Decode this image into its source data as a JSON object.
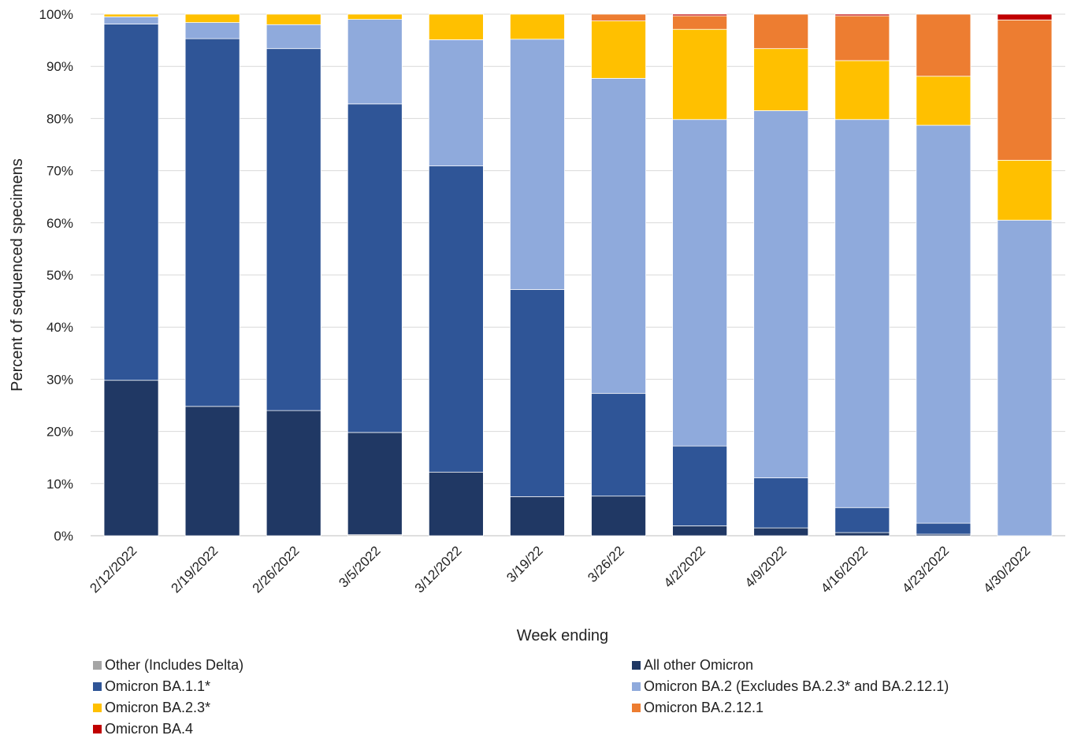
{
  "chart_data": {
    "type": "bar",
    "stacked": true,
    "xlabel": "Week ending",
    "ylabel": "Percent of sequenced specimens",
    "ylim": [
      0,
      100
    ],
    "yticks": [
      "0%",
      "10%",
      "20%",
      "30%",
      "40%",
      "50%",
      "60%",
      "70%",
      "80%",
      "90%",
      "100%"
    ],
    "grid": true,
    "legend_position": "bottom",
    "categories": [
      "2/12/2022",
      "2/19/2022",
      "2/26/2022",
      "3/5/2022",
      "3/12/2022",
      "3/19/22",
      "3/26/22",
      "4/2/2022",
      "4/9/2022",
      "4/16/2022",
      "4/23/2022",
      "4/30/2022"
    ],
    "series": [
      {
        "name": "Other (Includes Delta)",
        "color": "#a5a5a5",
        "values": [
          0,
          0,
          0,
          0.2,
          0,
          0,
          0,
          0,
          0,
          0,
          0,
          0
        ]
      },
      {
        "name": "All other Omicron",
        "color": "#203864",
        "values": [
          29.8,
          24.8,
          24.0,
          19.6,
          12.2,
          7.5,
          7.6,
          1.9,
          1.5,
          0.6,
          0.3,
          0
        ]
      },
      {
        "name": "Omicron BA.1.1*",
        "color": "#2f5597",
        "values": [
          68.3,
          70.5,
          69.4,
          63.0,
          58.7,
          39.7,
          19.7,
          15.3,
          9.6,
          4.8,
          2.1,
          0
        ]
      },
      {
        "name": "Omicron BA.2 (Excludes BA.2.3* and BA.2.12.1)",
        "color": "#8faadc",
        "values": [
          1.4,
          3.1,
          4.6,
          16.2,
          24.2,
          48.0,
          60.4,
          62.6,
          70.4,
          74.4,
          76.3,
          60.5
        ]
      },
      {
        "name": "Omicron BA.2.3*",
        "color": "#ffc000",
        "values": [
          0.5,
          1.6,
          2.0,
          1.0,
          4.9,
          4.8,
          11.0,
          17.3,
          11.9,
          11.3,
          9.4,
          11.5
        ]
      },
      {
        "name": "Omicron BA.2.12.1",
        "color": "#ed7d31",
        "values": [
          0,
          0,
          0,
          0,
          0,
          0,
          1.3,
          2.6,
          6.6,
          8.6,
          11.9,
          26.9
        ]
      },
      {
        "name": "Omicron BA.4",
        "color": "#c00000",
        "values": [
          0,
          0,
          0,
          0,
          0,
          0,
          0,
          0.3,
          0,
          0.3,
          0,
          1.1
        ]
      }
    ]
  },
  "legend_order": [
    0,
    1,
    2,
    3,
    4,
    5,
    6
  ]
}
